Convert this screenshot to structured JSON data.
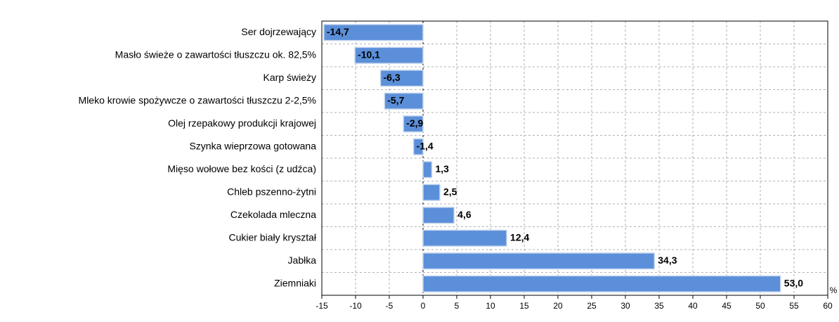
{
  "chart_data": {
    "type": "hbar",
    "categories": [
      "Ser dojrzewający",
      "Masło świeże o zawartości tłuszczu ok. 82,5%",
      "Karp świeży",
      "Mleko krowie spożywcze o zawartości tłuszczu 2-2,5%",
      "Olej rzepakowy produkcji krajowej",
      "Szynka wieprzowa gotowana",
      "Mięso wołowe bez kości (z udźca)",
      "Chleb pszenno-żytni",
      "Czekolada mleczna",
      "Cukier biały kryształ",
      "Jabłka",
      "Ziemniaki"
    ],
    "values": [
      -14.7,
      -10.1,
      -6.3,
      -5.7,
      -2.9,
      -1.4,
      1.3,
      2.5,
      4.6,
      12.4,
      34.3,
      53.0
    ],
    "value_labels": [
      "-14,7",
      "-10,1",
      "-6,3",
      "-5,7",
      "-2,9",
      "-1,4",
      "1,3",
      "2,5",
      "4,6",
      "12,4",
      "34,3",
      "53,0"
    ],
    "color": "#5b8fd9",
    "xlabel": "%",
    "xlim": [
      -15,
      60
    ],
    "xticks": [
      -15,
      -10,
      -5,
      0,
      5,
      10,
      15,
      20,
      25,
      30,
      35,
      40,
      45,
      50,
      55,
      60
    ],
    "grid": true
  }
}
